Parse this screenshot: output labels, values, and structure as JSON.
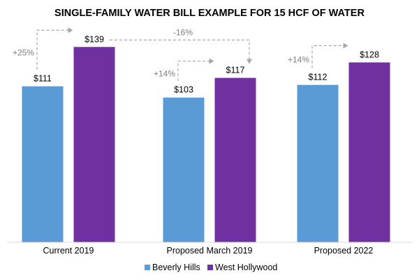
{
  "chart_data": {
    "type": "bar",
    "title": "SINGLE-FAMILY WATER BILL EXAMPLE FOR 15 HCF OF WATER",
    "categories": [
      "Current 2019",
      "Proposed March 2019",
      "Proposed 2022"
    ],
    "series": [
      {
        "name": "Beverly Hills",
        "color": "#5B9BD5",
        "values": [
          111,
          103,
          112
        ],
        "labels": [
          "$111",
          "$103",
          "$112"
        ]
      },
      {
        "name": "West Hollywood",
        "color": "#7030A0",
        "values": [
          139,
          117,
          128
        ],
        "labels": [
          "$139",
          "$117",
          "$128"
        ]
      }
    ],
    "annotations": [
      {
        "text": "+25%",
        "category": 0,
        "from_series": 0,
        "to_series": 1
      },
      {
        "text": "+14%",
        "category": 1,
        "from_series": 0,
        "to_series": 1
      },
      {
        "text": "+14%",
        "category": 2,
        "from_series": 0,
        "to_series": 1
      },
      {
        "text": "-16%",
        "from_category": 0,
        "to_category": 1,
        "series": 1
      }
    ],
    "annotation_color": "#A6A6A6",
    "ylim": [
      0,
      160
    ],
    "grid": false,
    "legend_position": "bottom"
  }
}
